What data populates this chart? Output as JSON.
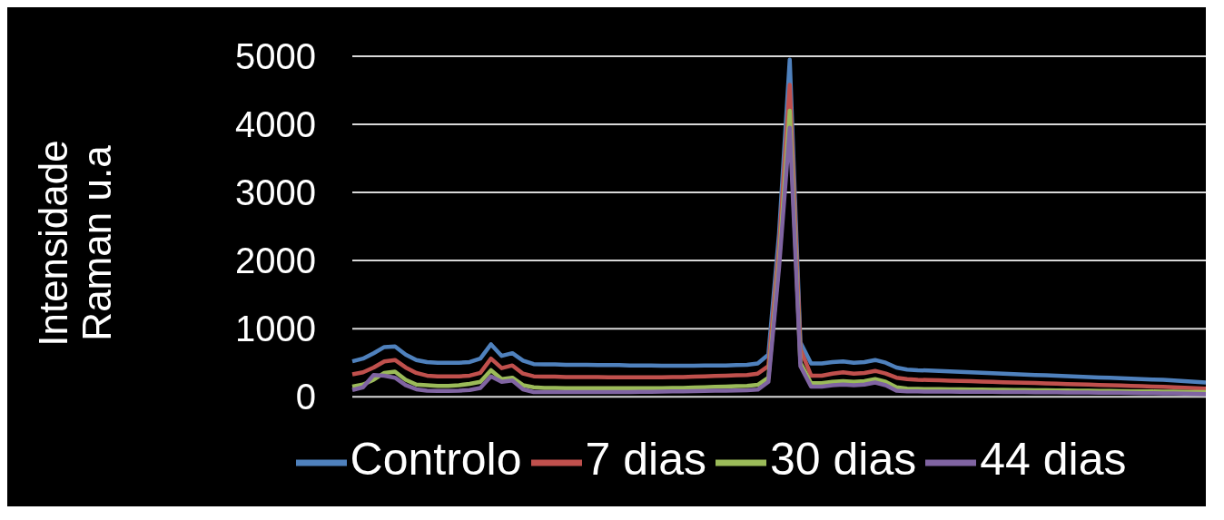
{
  "chart_data": {
    "type": "line",
    "ylabel": "Intensidade Raman u.a",
    "categories": [
      null,
      null,
      null,
      null,
      null,
      null,
      null,
      null,
      null,
      null,
      null,
      null,
      null,
      null,
      null,
      null,
      null,
      null,
      null,
      null,
      null,
      null,
      null,
      null,
      null,
      null,
      null,
      null,
      null,
      null,
      null,
      null,
      null,
      null,
      null,
      null,
      null,
      null,
      null,
      null,
      null,
      null,
      null,
      null,
      null,
      null,
      null,
      null,
      null,
      null,
      null,
      null,
      null,
      null,
      null,
      null,
      null,
      null,
      null,
      null,
      null,
      null,
      null,
      null,
      null,
      null,
      null,
      null,
      null,
      null,
      null,
      null,
      null,
      null,
      null,
      null,
      null,
      null,
      null,
      null,
      null
    ],
    "series": [
      {
        "name": "Controlo",
        "color": "#4f81bd",
        "values": [
          520,
          560,
          640,
          730,
          740,
          620,
          540,
          510,
          500,
          500,
          500,
          510,
          560,
          770,
          600,
          640,
          530,
          480,
          475,
          475,
          470,
          470,
          470,
          465,
          465,
          465,
          460,
          460,
          460,
          455,
          455,
          455,
          455,
          460,
          460,
          460,
          465,
          470,
          490,
          620,
          2400,
          4950,
          800,
          490,
          490,
          510,
          520,
          500,
          510,
          540,
          500,
          430,
          400,
          390,
          385,
          378,
          372,
          365,
          358,
          352,
          345,
          340,
          333,
          327,
          320,
          315,
          308,
          302,
          296,
          290,
          284,
          278,
          272,
          266,
          260,
          254,
          248,
          240,
          230,
          220,
          210
        ]
      },
      {
        "name": "7 dias",
        "color": "#c0504d",
        "values": [
          330,
          360,
          430,
          520,
          540,
          430,
          350,
          310,
          300,
          300,
          300,
          310,
          350,
          560,
          420,
          460,
          340,
          300,
          295,
          295,
          290,
          290,
          290,
          290,
          285,
          285,
          285,
          285,
          285,
          285,
          290,
          290,
          295,
          300,
          305,
          310,
          315,
          320,
          340,
          450,
          2200,
          4580,
          700,
          310,
          310,
          340,
          360,
          340,
          350,
          380,
          340,
          280,
          260,
          250,
          246,
          241,
          237,
          232,
          228,
          223,
          219,
          214,
          210,
          205,
          201,
          196,
          192,
          187,
          183,
          178,
          174,
          169,
          165,
          160,
          155,
          150,
          145,
          140,
          133,
          126,
          120
        ]
      },
      {
        "name": "30 dias",
        "color": "#9bbb59",
        "values": [
          150,
          180,
          250,
          350,
          370,
          250,
          180,
          170,
          160,
          160,
          170,
          190,
          220,
          390,
          260,
          280,
          170,
          140,
          130,
          130,
          125,
          125,
          125,
          125,
          125,
          125,
          125,
          125,
          125,
          125,
          130,
          130,
          135,
          140,
          145,
          150,
          155,
          160,
          175,
          280,
          2000,
          4200,
          500,
          200,
          200,
          220,
          230,
          220,
          230,
          260,
          220,
          140,
          120,
          115,
          113,
          111,
          110,
          108,
          106,
          105,
          103,
          101,
          100,
          98,
          96,
          95,
          93,
          91,
          90,
          88,
          86,
          85,
          83,
          81,
          80,
          78,
          76,
          75,
          73,
          71,
          70
        ]
      },
      {
        "name": "44 dias",
        "color": "#8064a2",
        "values": [
          100,
          140,
          320,
          310,
          280,
          170,
          110,
          90,
          85,
          85,
          90,
          100,
          130,
          300,
          220,
          240,
          110,
          70,
          70,
          70,
          70,
          70,
          70,
          70,
          70,
          70,
          70,
          72,
          74,
          76,
          78,
          80,
          82,
          85,
          88,
          90,
          92,
          95,
          105,
          220,
          1900,
          3950,
          450,
          150,
          150,
          170,
          180,
          170,
          180,
          210,
          170,
          90,
          80,
          78,
          77,
          76,
          75,
          74,
          73,
          72,
          71,
          70,
          69,
          68,
          67,
          66,
          65,
          64,
          63,
          62,
          61,
          60,
          58,
          56,
          54,
          52,
          50,
          48,
          46,
          43,
          40
        ]
      }
    ],
    "ylim": [
      0,
      5000
    ],
    "yticks": [
      0,
      1000,
      2000,
      3000,
      4000,
      5000
    ],
    "grid": "y",
    "legend": "bottom",
    "tick_labels": "y"
  }
}
